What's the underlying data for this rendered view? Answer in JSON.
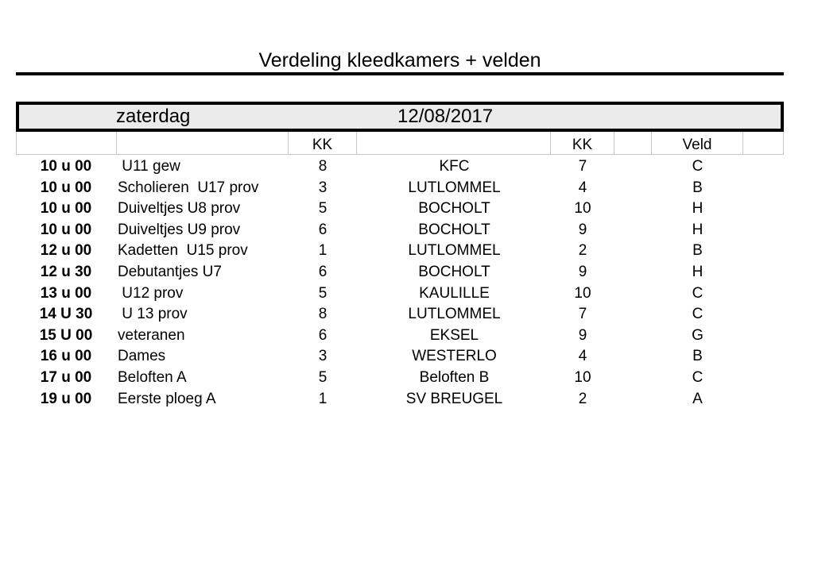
{
  "document": {
    "title": "Verdeling kleedkamers  + velden"
  },
  "day": {
    "name": "zaterdag",
    "date": "12/08/2017"
  },
  "table": {
    "headers": {
      "col_kk1": "KK",
      "col_kk2": "KK",
      "col_veld": "Veld"
    },
    "rows": [
      {
        "time": "10 u 00",
        "team": " U11 gew",
        "kk1": "8",
        "opponent": "KFC",
        "kk2": "7",
        "veld": "C"
      },
      {
        "time": "10 u 00",
        "team": "Scholieren  U17 prov",
        "kk1": "3",
        "opponent": "LUTLOMMEL",
        "kk2": "4",
        "veld": "B"
      },
      {
        "time": "10 u 00",
        "team": "Duiveltjes U8 prov",
        "kk1": "5",
        "opponent": "BOCHOLT",
        "kk2": "10",
        "veld": "H"
      },
      {
        "time": "10 u 00",
        "team": "Duiveltjes U9 prov",
        "kk1": "6",
        "opponent": "BOCHOLT",
        "kk2": "9",
        "veld": "H"
      },
      {
        "time": "12 u 00",
        "team": "Kadetten  U15 prov",
        "kk1": "1",
        "opponent": "LUTLOMMEL",
        "kk2": "2",
        "veld": "B"
      },
      {
        "time": "12 u 30",
        "team": "Debutantjes U7",
        "kk1": "6",
        "opponent": "BOCHOLT",
        "kk2": "9",
        "veld": "H"
      },
      {
        "time": "13 u 00",
        "team": " U12 prov",
        "kk1": "5",
        "opponent": "KAULILLE",
        "kk2": "10",
        "veld": "C"
      },
      {
        "time": "14 U 30",
        "team": " U 13 prov",
        "kk1": "8",
        "opponent": "LUTLOMMEL",
        "kk2": "7",
        "veld": "C"
      },
      {
        "time": "15 U 00",
        "team": "veteranen",
        "kk1": "6",
        "opponent": "EKSEL",
        "kk2": "9",
        "veld": "G"
      },
      {
        "time": "16 u 00",
        "team": "Dames",
        "kk1": "3",
        "opponent": "WESTERLO",
        "kk2": "4",
        "veld": "B"
      },
      {
        "time": "17 u 00",
        "team": "Beloften A",
        "kk1": "5",
        "opponent": "Beloften B",
        "kk2": "10",
        "veld": "C"
      },
      {
        "time": "19 u 00",
        "team": "Eerste ploeg A",
        "kk1": "1",
        "opponent": "SV BREUGEL",
        "kk2": "2",
        "veld": "A"
      }
    ]
  },
  "colors": {
    "day_box_fill": "#ebebeb",
    "grid_line": "#c8c8c8",
    "text": "#000000"
  }
}
